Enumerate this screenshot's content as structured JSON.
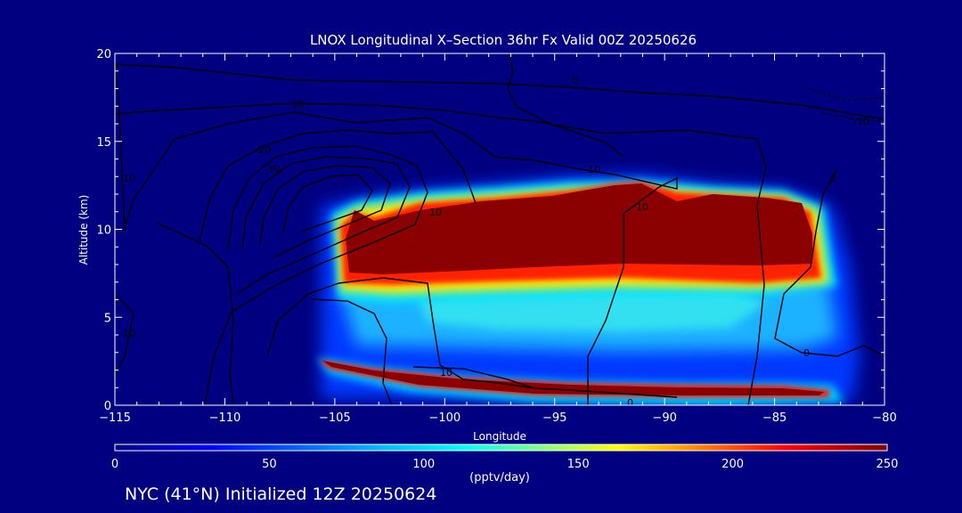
{
  "chart_data": {
    "type": "heatmap",
    "title": "LNOX Longitudinal X–Section 36hr  Fx Valid 00Z 20250626",
    "xlabel": "Longitude",
    "ylabel": "Altitude (km)",
    "xlim": [
      -115,
      -80
    ],
    "ylim": [
      0,
      20
    ],
    "x_ticks": [
      -115,
      -110,
      -105,
      -100,
      -95,
      -90,
      -85,
      -80
    ],
    "x_tick_labels": [
      "−115",
      "−110",
      "−105",
      "−100",
      "−95",
      "−90",
      "−85",
      "−80"
    ],
    "y_ticks": [
      0,
      5,
      10,
      15,
      20
    ],
    "y_tick_labels": [
      "0",
      "5",
      "10",
      "15",
      "20"
    ],
    "colorbar": {
      "label": "(pptv/day)",
      "range": [
        0,
        250
      ],
      "ticks": [
        "0",
        "50",
        "100",
        "150",
        "200",
        "250"
      ],
      "colors": [
        "#000080",
        "#0000ff",
        "#00bfff",
        "#00ffff",
        "#7fff7f",
        "#ffff00",
        "#ff7f00",
        "#ff0000",
        "#800000"
      ]
    },
    "field_regions": [
      {
        "name": "upper LNOx plume",
        "lon_range": [
          -105,
          -83
        ],
        "alt_range": [
          7.5,
          12
        ],
        "value": 250
      },
      {
        "name": "mid-level plume",
        "lon_range": [
          -105,
          -83
        ],
        "alt_range": [
          3,
          7
        ],
        "value": 100
      },
      {
        "name": "near-surface band",
        "lon_range": [
          -105,
          -83
        ],
        "alt_range": [
          0.5,
          2.5
        ],
        "value": 250
      }
    ],
    "contour_labels": [
      "0",
      "10",
      "20",
      "30",
      "10",
      "10",
      "10",
      "0",
      "10",
      "10",
      "0",
      "0",
      "-10",
      "10"
    ],
    "grid": false
  },
  "footer": {
    "label": "NYC (41°N) Initialized 12Z 20250624"
  }
}
